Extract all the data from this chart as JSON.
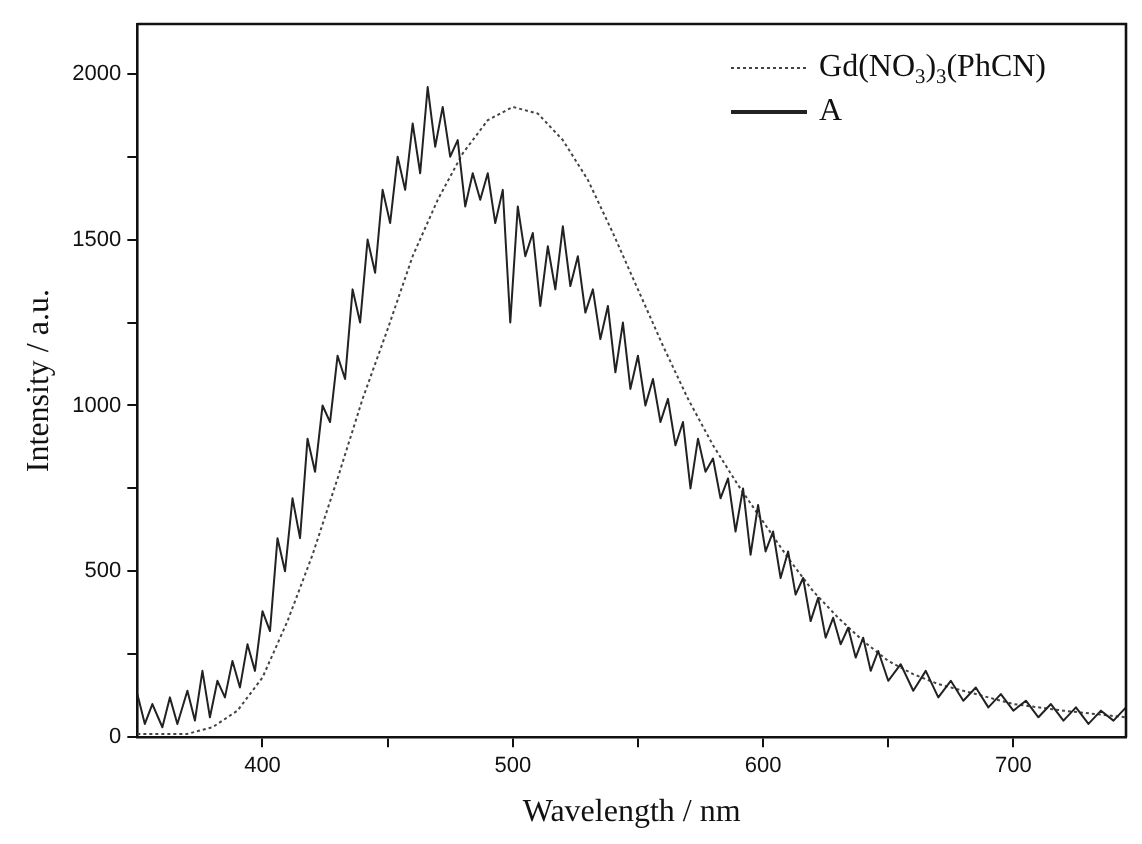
{
  "chart_data": {
    "type": "line",
    "xlabel": "Wavelength / nm",
    "ylabel": "Intensity / a.u.",
    "xlim": [
      350,
      745
    ],
    "ylim": [
      0,
      2150
    ],
    "xticks": [
      400,
      {
        "value": 450,
        "label": null
      },
      500,
      {
        "value": 550,
        "label": null
      },
      600,
      {
        "value": 650,
        "label": null
      },
      700
    ],
    "yticks": [
      0,
      {
        "value": 250,
        "label": null
      },
      500,
      {
        "value": 750,
        "label": null
      },
      1000,
      {
        "value": 1250,
        "label": null
      },
      1500,
      {
        "value": 1750,
        "label": null
      },
      2000
    ],
    "grid": false,
    "legend": "top right",
    "marker": "none",
    "series": [
      {
        "name": "Gd(NO$_{3}$)$_{3}$(PhCN)",
        "color": "#444444",
        "line_style": "dotted",
        "x": [
          350,
          360,
          370,
          380,
          390,
          400,
          410,
          420,
          430,
          440,
          450,
          460,
          470,
          480,
          490,
          500,
          510,
          520,
          530,
          540,
          550,
          560,
          570,
          580,
          590,
          600,
          610,
          620,
          630,
          640,
          650,
          660,
          670,
          680,
          690,
          700,
          720,
          745
        ],
        "values": [
          10,
          10,
          10,
          30,
          80,
          180,
          350,
          550,
          780,
          1020,
          1230,
          1450,
          1620,
          1760,
          1860,
          1900,
          1880,
          1800,
          1680,
          1520,
          1350,
          1180,
          1020,
          880,
          760,
          650,
          540,
          440,
          360,
          290,
          230,
          190,
          160,
          140,
          120,
          100,
          80,
          60
        ]
      },
      {
        "name": "A",
        "color": "#222222",
        "line_style": "solid",
        "x": [
          350,
          353,
          356,
          360,
          363,
          366,
          370,
          373,
          376,
          379,
          382,
          385,
          388,
          391,
          394,
          397,
          400,
          403,
          406,
          409,
          412,
          415,
          418,
          421,
          424,
          427,
          430,
          433,
          436,
          439,
          442,
          445,
          448,
          451,
          454,
          457,
          460,
          463,
          466,
          469,
          472,
          475,
          478,
          481,
          484,
          487,
          490,
          493,
          496,
          499,
          502,
          505,
          508,
          511,
          514,
          517,
          520,
          523,
          526,
          529,
          532,
          535,
          538,
          541,
          544,
          547,
          550,
          553,
          556,
          559,
          562,
          565,
          568,
          571,
          574,
          577,
          580,
          583,
          586,
          589,
          592,
          595,
          598,
          601,
          604,
          607,
          610,
          613,
          616,
          619,
          622,
          625,
          628,
          631,
          634,
          637,
          640,
          643,
          646,
          650,
          655,
          660,
          665,
          670,
          675,
          680,
          685,
          690,
          695,
          700,
          705,
          710,
          715,
          720,
          725,
          730,
          735,
          740,
          745
        ],
        "values": [
          130,
          40,
          100,
          30,
          120,
          40,
          140,
          50,
          200,
          60,
          170,
          120,
          230,
          150,
          280,
          200,
          380,
          320,
          600,
          500,
          720,
          600,
          900,
          800,
          1000,
          950,
          1150,
          1080,
          1350,
          1250,
          1500,
          1400,
          1650,
          1550,
          1750,
          1650,
          1850,
          1700,
          1960,
          1780,
          1900,
          1750,
          1800,
          1600,
          1700,
          1620,
          1700,
          1550,
          1650,
          1250,
          1600,
          1450,
          1520,
          1300,
          1480,
          1350,
          1540,
          1360,
          1450,
          1280,
          1350,
          1200,
          1300,
          1100,
          1250,
          1050,
          1150,
          1000,
          1080,
          950,
          1020,
          880,
          950,
          750,
          900,
          800,
          840,
          720,
          780,
          620,
          750,
          550,
          700,
          560,
          620,
          480,
          560,
          430,
          480,
          350,
          420,
          300,
          360,
          280,
          330,
          240,
          300,
          200,
          260,
          170,
          220,
          140,
          200,
          120,
          170,
          110,
          150,
          90,
          130,
          80,
          110,
          60,
          100,
          50,
          90,
          40,
          80,
          50,
          90
        ]
      }
    ]
  }
}
